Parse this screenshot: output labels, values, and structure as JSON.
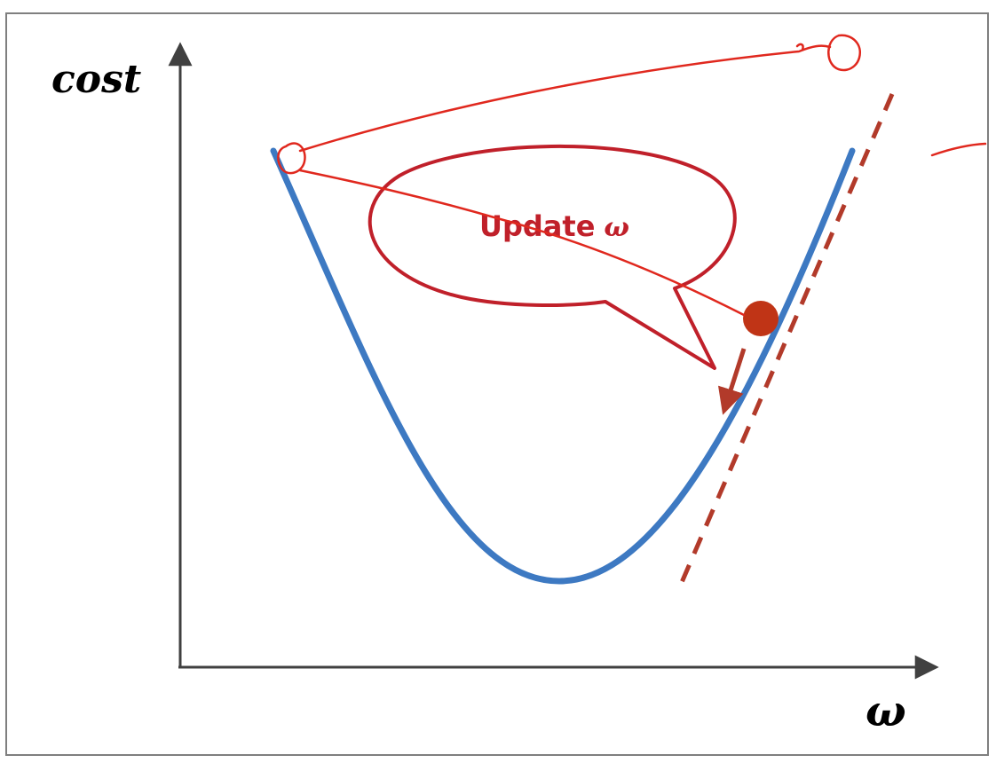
{
  "axes": {
    "y_label": "cost",
    "x_label": "ω"
  },
  "callout": {
    "text": "Update",
    "symbol": "ω"
  },
  "colors": {
    "curve": "#3d79c2",
    "tangent": "#b23a2a",
    "marker": "#c03416",
    "annotation": "#e0281e",
    "axis": "#404040"
  }
}
